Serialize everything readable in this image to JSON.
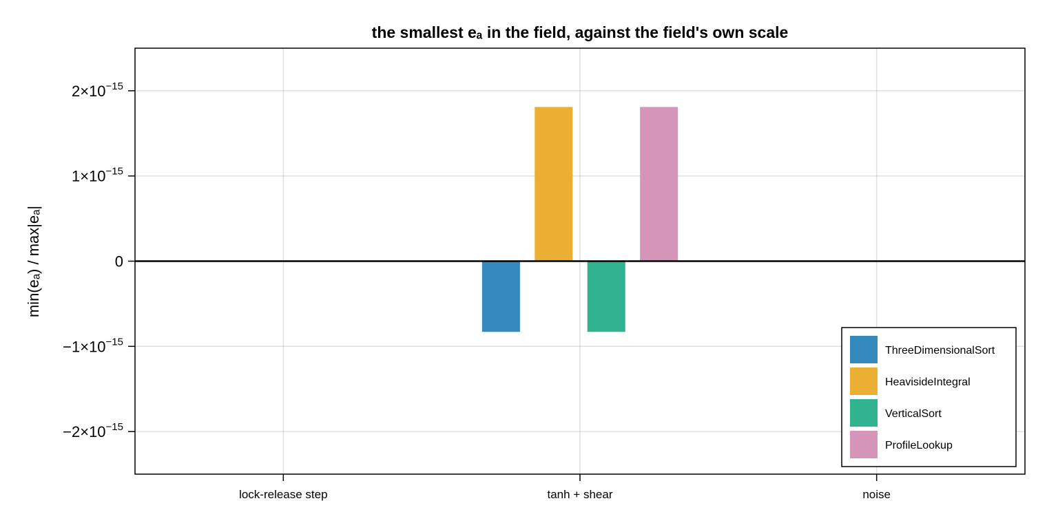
{
  "chart_data": {
    "type": "bar",
    "title": "the smallest eₐ in the field, against the field's own scale",
    "ylabel": "min(eₐ) / max|eₐ|",
    "xlabel": "",
    "categories": [
      "lock-release step",
      "tanh + shear",
      "noise"
    ],
    "ylim": [
      -2.5e-15,
      2.5e-15
    ],
    "yticks": [
      -2e-15,
      -1e-15,
      0,
      1e-15,
      2e-15
    ],
    "ytick_labels": [
      {
        "mantissa": "−2×10",
        "exponent": "−15"
      },
      {
        "mantissa": "−1×10",
        "exponent": "−15"
      },
      {
        "mantissa": "0",
        "exponent": ""
      },
      {
        "mantissa": "1×10",
        "exponent": "−15"
      },
      {
        "mantissa": "2×10",
        "exponent": "−15"
      }
    ],
    "grid": true,
    "legend_position": "bottom-right",
    "series": [
      {
        "name": "ThreeDimensionalSort",
        "color": "#348ABD",
        "values": [
          0,
          -8.3e-16,
          0
        ]
      },
      {
        "name": "HeavisideIntegral",
        "color": "#EBB033",
        "values": [
          0,
          1.81e-15,
          0
        ]
      },
      {
        "name": "VerticalSort",
        "color": "#32B38F",
        "values": [
          0,
          -8.3e-16,
          0
        ]
      },
      {
        "name": "ProfileLookup",
        "color": "#D595B9",
        "values": [
          0,
          1.81e-15,
          0
        ]
      }
    ]
  }
}
